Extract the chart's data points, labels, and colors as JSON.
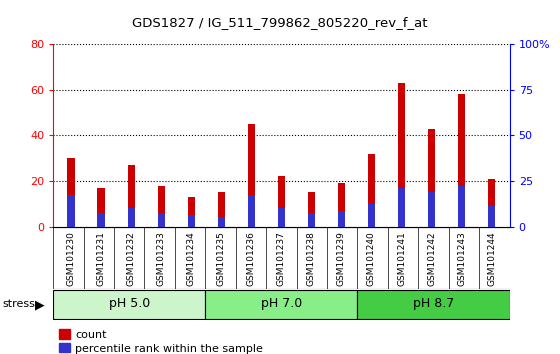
{
  "title": "GDS1827 / IG_511_799862_805220_rev_f_at",
  "samples": [
    "GSM101230",
    "GSM101231",
    "GSM101232",
    "GSM101233",
    "GSM101234",
    "GSM101235",
    "GSM101236",
    "GSM101237",
    "GSM101238",
    "GSM101239",
    "GSM101240",
    "GSM101241",
    "GSM101242",
    "GSM101243",
    "GSM101244"
  ],
  "count_values": [
    30,
    17,
    27,
    18,
    13,
    15,
    45,
    22,
    15,
    19,
    32,
    63,
    43,
    58,
    21
  ],
  "percentile_values": [
    14,
    6,
    8,
    6,
    5,
    4,
    14,
    8,
    6,
    7,
    10,
    17,
    15,
    18,
    9
  ],
  "groups": [
    {
      "label": "pH 5.0",
      "start": 0,
      "end": 5,
      "color": "#ccf5cc"
    },
    {
      "label": "pH 7.0",
      "start": 5,
      "end": 10,
      "color": "#88ee88"
    },
    {
      "label": "pH 8.7",
      "start": 10,
      "end": 15,
      "color": "#44cc44"
    }
  ],
  "stress_label": "stress",
  "ylim_left": [
    0,
    80
  ],
  "ylim_right": [
    0,
    100
  ],
  "yticks_left": [
    0,
    20,
    40,
    60,
    80
  ],
  "yticks_right": [
    0,
    25,
    50,
    75,
    100
  ],
  "ytick_right_labels": [
    "0",
    "25",
    "50",
    "75",
    "100%"
  ],
  "bar_color_red": "#cc0000",
  "bar_color_blue": "#3333cc",
  "bar_width": 0.25,
  "bg_color": "#cccccc",
  "legend_count": "count",
  "legend_percentile": "percentile rank within the sample"
}
